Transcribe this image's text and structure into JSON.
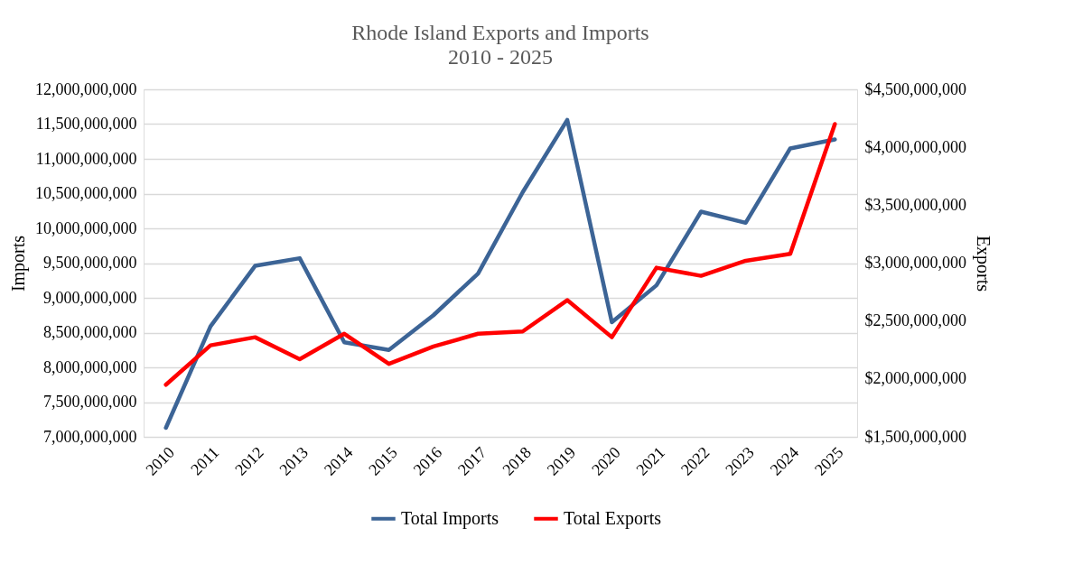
{
  "chart_data": {
    "type": "line",
    "title": "Rhode Island Exports and Imports",
    "subtitle": "2010 - 2025",
    "ylabel": "Imports",
    "y2label": "Exports",
    "categories": [
      "2010",
      "2011",
      "2012",
      "2013",
      "2014",
      "2015",
      "2016",
      "2017",
      "2018",
      "2019",
      "2020",
      "2021",
      "2022",
      "2023",
      "2024",
      "2025"
    ],
    "series": [
      {
        "name": "Total Imports",
        "color": "#3c6496",
        "values": [
          7130000000,
          8590000000,
          9460000000,
          9570000000,
          8360000000,
          8250000000,
          8750000000,
          9350000000,
          10520000000,
          11560000000,
          8650000000,
          9180000000,
          10240000000,
          10080000000,
          11150000000,
          11280000000
        ]
      },
      {
        "name": "Total Exports",
        "color": "#ff0000",
        "axis": "y2",
        "values": [
          1950000000,
          2290000000,
          2360000000,
          2170000000,
          2390000000,
          2130000000,
          2280000000,
          2390000000,
          2410000000,
          2680000000,
          2360000000,
          2960000000,
          2890000000,
          3020000000,
          3080000000,
          4200000000
        ]
      }
    ],
    "ylim": [
      7000000000,
      12000000000
    ],
    "yticks": [
      {
        "value": 7000000000,
        "label": "7,000,000,000"
      },
      {
        "value": 7500000000,
        "label": "7,500,000,000"
      },
      {
        "value": 8000000000,
        "label": "8,000,000,000"
      },
      {
        "value": 8500000000,
        "label": "8,500,000,000"
      },
      {
        "value": 9000000000,
        "label": "9,000,000,000"
      },
      {
        "value": 9500000000,
        "label": "9,500,000,000"
      },
      {
        "value": 10000000000,
        "label": "10,000,000,000"
      },
      {
        "value": 10500000000,
        "label": "10,500,000,000"
      },
      {
        "value": 11000000000,
        "label": "11,000,000,000"
      },
      {
        "value": 11500000000,
        "label": "11,500,000,000"
      },
      {
        "value": 12000000000,
        "label": "12,000,000,000"
      }
    ],
    "y2lim": [
      1500000000,
      4500000000
    ],
    "y2ticks": [
      {
        "value": 1500000000,
        "label": "$1,500,000,000"
      },
      {
        "value": 2000000000,
        "label": "$2,000,000,000"
      },
      {
        "value": 2500000000,
        "label": "$2,500,000,000"
      },
      {
        "value": 3000000000,
        "label": "$3,000,000,000"
      },
      {
        "value": 3500000000,
        "label": "$3,500,000,000"
      },
      {
        "value": 4000000000,
        "label": "$4,000,000,000"
      },
      {
        "value": 4500000000,
        "label": "$4,500,000,000"
      }
    ],
    "grid": "y",
    "legend": "bottom",
    "marker": "none",
    "line_style": "solid"
  }
}
